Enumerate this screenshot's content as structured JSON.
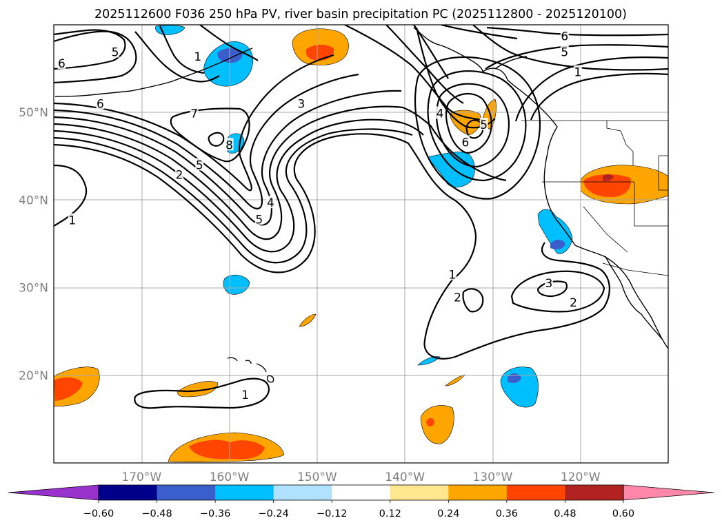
{
  "chart_data": {
    "type": "contour",
    "title": "2025112600 F036 250 hPa PV, river basin precipitation PC (2025112800 - 2025120100)",
    "map_extent": {
      "lon_range": [
        -180,
        -110
      ],
      "lat_range": [
        10,
        60
      ]
    },
    "x_ticks": [
      {
        "lon": -170,
        "label": "170°W"
      },
      {
        "lon": -160,
        "label": "160°W"
      },
      {
        "lon": -150,
        "label": "150°W"
      },
      {
        "lon": -140,
        "label": "140°W"
      },
      {
        "lon": -130,
        "label": "130°W"
      },
      {
        "lon": -120,
        "label": "120°W"
      }
    ],
    "y_ticks": [
      {
        "lat": 20,
        "label": "20°N"
      },
      {
        "lat": 30,
        "label": "30°N"
      },
      {
        "lat": 40,
        "label": "40°N"
      },
      {
        "lat": 50,
        "label": "50°N"
      }
    ],
    "colorbar": {
      "extend": "both",
      "boundaries": [
        -0.6,
        -0.48,
        -0.36,
        -0.24,
        -0.12,
        0.12,
        0.24,
        0.36,
        0.48,
        0.6
      ],
      "tick_labels": [
        "−0.60",
        "−0.48",
        "−0.36",
        "−0.24",
        "−0.12",
        "0.12",
        "0.24",
        "0.36",
        "0.48",
        "0.60"
      ],
      "colors": [
        "#9932cc",
        "#00008b",
        "#3a5fcd",
        "#00bfff",
        "#b0e2ff",
        "#ffffff",
        "#ffe68f",
        "#ffa500",
        "#ff4500",
        "#b22222",
        "#ff88aa"
      ]
    },
    "pv_contour_labels": [
      {
        "text": "5",
        "lon": -173.0,
        "lat": 56.9
      },
      {
        "text": "6",
        "lon": -179.1,
        "lat": 55.6
      },
      {
        "text": "6",
        "lon": -174.7,
        "lat": 51.0
      },
      {
        "text": "7",
        "lon": -164.0,
        "lat": 49.9
      },
      {
        "text": "8",
        "lon": -160.0,
        "lat": 46.3
      },
      {
        "text": "5",
        "lon": -163.4,
        "lat": 44.0
      },
      {
        "text": "2",
        "lon": -165.7,
        "lat": 42.9
      },
      {
        "text": "1",
        "lon": -177.9,
        "lat": 37.7
      },
      {
        "text": "3",
        "lon": -151.8,
        "lat": 51.0
      },
      {
        "text": "4",
        "lon": -155.3,
        "lat": 39.7
      },
      {
        "text": "5",
        "lon": -156.6,
        "lat": 37.8
      },
      {
        "text": "4",
        "lon": -136.0,
        "lat": 49.9
      },
      {
        "text": "6",
        "lon": -133.1,
        "lat": 46.6
      },
      {
        "text": "5",
        "lon": -131.0,
        "lat": 48.6
      },
      {
        "text": "6",
        "lon": -121.8,
        "lat": 58.7
      },
      {
        "text": "5",
        "lon": -121.8,
        "lat": 56.9
      },
      {
        "text": "1",
        "lon": -120.3,
        "lat": 54.6
      },
      {
        "text": "1",
        "lon": -163.6,
        "lat": 56.4
      },
      {
        "text": "1",
        "lon": -134.6,
        "lat": 31.5
      },
      {
        "text": "2",
        "lon": -134.0,
        "lat": 28.9
      },
      {
        "text": "3",
        "lon": -123.6,
        "lat": 30.5
      },
      {
        "text": "2",
        "lon": -120.8,
        "lat": 28.3
      },
      {
        "text": "1",
        "lon": -158.2,
        "lat": 17.8
      }
    ]
  }
}
